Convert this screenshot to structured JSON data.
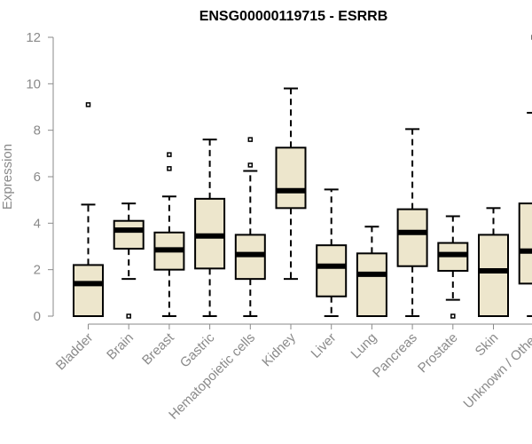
{
  "chart_data": {
    "type": "boxplot",
    "title": "ENSG00000119715 - ESRRB",
    "xlabel": "",
    "ylabel": "Expression",
    "ylim": [
      0,
      12
    ],
    "yticks": [
      0,
      2,
      4,
      6,
      8,
      10,
      12
    ],
    "grid": false,
    "legend": "none",
    "colors": {
      "box_fill": "#ede6cc",
      "box_stroke": "#000000",
      "axis": "#8a8a8a",
      "text": "#8a8a8a"
    },
    "categories": [
      "Bladder",
      "Brain",
      "Breast",
      "Gastric",
      "Hematopoietic cells",
      "Kidney",
      "Liver",
      "Lung",
      "Pancreas",
      "Prostate",
      "Skin",
      "Unknown / Other"
    ],
    "boxes": [
      {
        "category": "Bladder",
        "whisker_low": 0,
        "q1": 0,
        "median": 1.4,
        "q3": 2.2,
        "whisker_high": 4.8,
        "outliers": [
          9.1
        ]
      },
      {
        "category": "Brain",
        "whisker_low": 1.6,
        "q1": 2.9,
        "median": 3.7,
        "q3": 4.1,
        "whisker_high": 4.85,
        "outliers": [
          0
        ]
      },
      {
        "category": "Breast",
        "whisker_low": 0,
        "q1": 2.0,
        "median": 2.85,
        "q3": 3.6,
        "whisker_high": 5.15,
        "outliers": [
          6.35,
          6.95
        ]
      },
      {
        "category": "Gastric",
        "whisker_low": 0,
        "q1": 2.05,
        "median": 3.45,
        "q3": 5.05,
        "whisker_high": 7.6,
        "outliers": []
      },
      {
        "category": "Hematopoietic cells",
        "whisker_low": 0,
        "q1": 1.6,
        "median": 2.65,
        "q3": 3.5,
        "whisker_high": 6.25,
        "outliers": [
          6.5,
          7.6
        ]
      },
      {
        "category": "Kidney",
        "whisker_low": 1.6,
        "q1": 4.65,
        "median": 5.4,
        "q3": 7.25,
        "whisker_high": 9.8,
        "outliers": []
      },
      {
        "category": "Liver",
        "whisker_low": 0,
        "q1": 0.85,
        "median": 2.15,
        "q3": 3.05,
        "whisker_high": 5.45,
        "outliers": []
      },
      {
        "category": "Lung",
        "whisker_low": 0,
        "q1": 0,
        "median": 1.8,
        "q3": 2.7,
        "whisker_high": 3.85,
        "outliers": []
      },
      {
        "category": "Pancreas",
        "whisker_low": 0,
        "q1": 2.15,
        "median": 3.6,
        "q3": 4.6,
        "whisker_high": 8.05,
        "outliers": []
      },
      {
        "category": "Prostate",
        "whisker_low": 0.7,
        "q1": 1.95,
        "median": 2.65,
        "q3": 3.15,
        "whisker_high": 4.3,
        "outliers": [
          0
        ]
      },
      {
        "category": "Skin",
        "whisker_low": 0,
        "q1": 0,
        "median": 1.95,
        "q3": 3.5,
        "whisker_high": 4.65,
        "outliers": []
      },
      {
        "category": "Unknown / Other",
        "whisker_low": 0,
        "q1": 1.4,
        "median": 2.8,
        "q3": 4.85,
        "whisker_high": 8.75,
        "outliers": [
          12.0
        ]
      }
    ]
  }
}
